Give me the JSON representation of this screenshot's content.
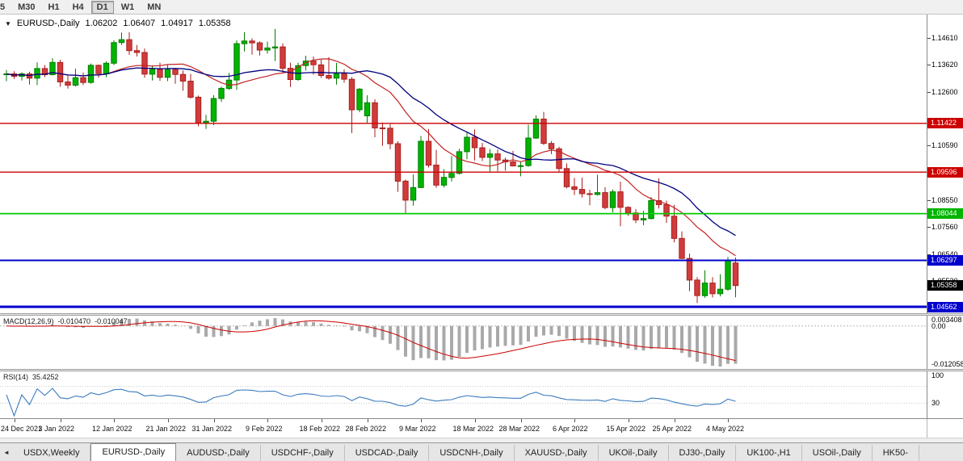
{
  "toolbar": {
    "timeframes": [
      {
        "label": "5",
        "active": false,
        "clipped": true
      },
      {
        "label": "M30",
        "active": false
      },
      {
        "label": "H1",
        "active": false
      },
      {
        "label": "H4",
        "active": false
      },
      {
        "label": "D1",
        "active": true
      },
      {
        "label": "W1",
        "active": false
      },
      {
        "label": "MN",
        "active": false
      }
    ]
  },
  "chart": {
    "title": {
      "collapse_arrow": "▼",
      "symbol_period": "EURUSD-,Daily",
      "open": "1.06202",
      "high": "1.06407",
      "low": "1.04917",
      "close": "1.05358"
    },
    "price_axis": {
      "labels": [
        {
          "text": "1.14610",
          "price": 1.1461
        },
        {
          "text": "1.13620",
          "price": 1.1362
        },
        {
          "text": "1.12600",
          "price": 1.126
        },
        {
          "text": "1.10590",
          "price": 1.1059
        },
        {
          "text": "1.08550",
          "price": 1.0855
        },
        {
          "text": "1.07560",
          "price": 1.0756
        },
        {
          "text": "1.06540",
          "price": 1.0654
        },
        {
          "text": "1.05520",
          "price": 1.0552
        }
      ],
      "badges": [
        {
          "text": "1.11422",
          "price": 1.11422,
          "bg": "#cc0000"
        },
        {
          "text": "1.09596",
          "price": 1.09596,
          "bg": "#cc0000"
        },
        {
          "text": "1.08044",
          "price": 1.08044,
          "bg": "#00b400"
        },
        {
          "text": "1.06297",
          "price": 1.06297,
          "bg": "#0000cc"
        },
        {
          "text": "1.05358",
          "price": 1.05358,
          "bg": "#000000"
        },
        {
          "text": "1.04562",
          "price": 1.04562,
          "bg": "#0000cc"
        }
      ]
    },
    "indicators": {
      "macd": {
        "label": "MACD(12,26,9)",
        "value_main": "-0.010470",
        "value_signal": "-0.010047",
        "axis": [
          {
            "text": "0.003408",
            "pos": "max"
          },
          {
            "text": "0.00",
            "pos": "zero"
          },
          {
            "text": "-0.012058",
            "pos": "min"
          }
        ]
      },
      "rsi": {
        "label": "RSI(14)",
        "value": "35.4252",
        "axis": [
          {
            "text": "100",
            "pos": "top"
          },
          {
            "text": "30",
            "pos": "level30"
          }
        ]
      }
    }
  },
  "chart_data": {
    "type": "candlestick",
    "title": "EURUSD-,Daily",
    "y_range": [
      1.0432,
      1.1549
    ],
    "x_labels": [
      {
        "label": "24 Dec 2021",
        "index": 1
      },
      {
        "label": "3 Jan 2022",
        "index": 7
      },
      {
        "label": "12 Jan 2022",
        "index": 14
      },
      {
        "label": "21 Jan 2022",
        "index": 21
      },
      {
        "label": "31 Jan 2022",
        "index": 27
      },
      {
        "label": "9 Feb 2022",
        "index": 34
      },
      {
        "label": "18 Feb 2022",
        "index": 41
      },
      {
        "label": "28 Feb 2022",
        "index": 47
      },
      {
        "label": "9 Mar 2022",
        "index": 54
      },
      {
        "label": "18 Mar 2022",
        "index": 61
      },
      {
        "label": "28 Mar 2022",
        "index": 67
      },
      {
        "label": "6 Apr 2022",
        "index": 74
      },
      {
        "label": "15 Apr 2022",
        "index": 81
      },
      {
        "label": "25 Apr 2022",
        "index": 87
      },
      {
        "label": "4 May 2022",
        "index": 94
      }
    ],
    "candles": [
      [
        1.1325,
        1.1342,
        1.13,
        1.1327
      ],
      [
        1.1327,
        1.1337,
        1.1308,
        1.1318
      ],
      [
        1.1318,
        1.1333,
        1.1302,
        1.1327
      ],
      [
        1.1327,
        1.1335,
        1.1287,
        1.1311
      ],
      [
        1.1311,
        1.137,
        1.1285,
        1.1347
      ],
      [
        1.1347,
        1.136,
        1.1315,
        1.1324
      ],
      [
        1.1324,
        1.1386,
        1.1321,
        1.137
      ],
      [
        1.137,
        1.138,
        1.1279,
        1.1297
      ],
      [
        1.1297,
        1.1324,
        1.1272,
        1.1285
      ],
      [
        1.1285,
        1.1347,
        1.128,
        1.1313
      ],
      [
        1.1313,
        1.1332,
        1.1285,
        1.1295
      ],
      [
        1.1295,
        1.1366,
        1.129,
        1.1359
      ],
      [
        1.1359,
        1.1362,
        1.1313,
        1.1328
      ],
      [
        1.1328,
        1.1374,
        1.1314,
        1.1367
      ],
      [
        1.1367,
        1.1453,
        1.136,
        1.1444
      ],
      [
        1.1444,
        1.1482,
        1.1435,
        1.1455
      ],
      [
        1.1455,
        1.1483,
        1.1398,
        1.1414
      ],
      [
        1.1414,
        1.1435,
        1.1392,
        1.1407
      ],
      [
        1.1407,
        1.1422,
        1.1313,
        1.1326
      ],
      [
        1.1326,
        1.1359,
        1.1302,
        1.1344
      ],
      [
        1.1344,
        1.1369,
        1.1301,
        1.1314
      ],
      [
        1.1314,
        1.136,
        1.13,
        1.1343
      ],
      [
        1.1343,
        1.1349,
        1.129,
        1.1325
      ],
      [
        1.1325,
        1.134,
        1.1264,
        1.13
      ],
      [
        1.13,
        1.1327,
        1.1234,
        1.124
      ],
      [
        1.124,
        1.1246,
        1.1131,
        1.1144
      ],
      [
        1.1144,
        1.1174,
        1.1121,
        1.115
      ],
      [
        1.115,
        1.1247,
        1.1135,
        1.1235
      ],
      [
        1.1235,
        1.1279,
        1.1222,
        1.1273
      ],
      [
        1.1273,
        1.133,
        1.1267,
        1.1304
      ],
      [
        1.1304,
        1.1452,
        1.1267,
        1.144
      ],
      [
        1.144,
        1.1483,
        1.1411,
        1.145
      ],
      [
        1.145,
        1.146,
        1.1399,
        1.1443
      ],
      [
        1.1443,
        1.1449,
        1.1396,
        1.1416
      ],
      [
        1.1416,
        1.1448,
        1.1403,
        1.1424
      ],
      [
        1.1424,
        1.1495,
        1.1375,
        1.1428
      ],
      [
        1.1428,
        1.1441,
        1.133,
        1.1348
      ],
      [
        1.1348,
        1.1369,
        1.1278,
        1.1306
      ],
      [
        1.1306,
        1.1369,
        1.1301,
        1.1358
      ],
      [
        1.1358,
        1.1395,
        1.134,
        1.1375
      ],
      [
        1.1375,
        1.1392,
        1.1324,
        1.1361
      ],
      [
        1.1361,
        1.138,
        1.1312,
        1.1321
      ],
      [
        1.1321,
        1.139,
        1.1305,
        1.1311
      ],
      [
        1.1311,
        1.1368,
        1.1287,
        1.1327
      ],
      [
        1.1327,
        1.1344,
        1.1294,
        1.1307
      ],
      [
        1.1307,
        1.1315,
        1.1106,
        1.1193
      ],
      [
        1.1193,
        1.1274,
        1.1184,
        1.127
      ],
      [
        1.117,
        1.1247,
        1.1144,
        1.1219
      ],
      [
        1.1219,
        1.1232,
        1.109,
        1.1125
      ],
      [
        1.1125,
        1.1145,
        1.1058,
        1.1124
      ],
      [
        1.1124,
        1.1139,
        1.1045,
        1.1066
      ],
      [
        1.1066,
        1.1075,
        1.0886,
        1.0926
      ],
      [
        1.0926,
        1.0932,
        1.0806,
        1.0855
      ],
      [
        1.0855,
        1.0951,
        1.0834,
        1.0902
      ],
      [
        1.0902,
        1.1095,
        1.09,
        1.1075
      ],
      [
        1.1075,
        1.1121,
        1.0977,
        1.0986
      ],
      [
        1.0986,
        1.1043,
        1.0901,
        1.0911
      ],
      [
        1.0911,
        1.0971,
        1.0902,
        1.094
      ],
      [
        1.094,
        1.102,
        1.0925,
        1.0955
      ],
      [
        1.0955,
        1.1047,
        1.095,
        1.1036
      ],
      [
        1.1036,
        1.1109,
        1.1008,
        1.109
      ],
      [
        1.109,
        1.1119,
        1.1003,
        1.1051
      ],
      [
        1.1051,
        1.1069,
        1.1001,
        1.1015
      ],
      [
        1.1015,
        1.1046,
        1.0962,
        1.1028
      ],
      [
        1.1028,
        1.1044,
        1.0963,
        1.1005
      ],
      [
        1.1005,
        1.1014,
        1.0965,
        1.0998
      ],
      [
        1.0998,
        1.1039,
        1.0981,
        1.0983
      ],
      [
        1.0983,
        1.0999,
        1.0944,
        1.0984
      ],
      [
        1.0984,
        1.1137,
        1.098,
        1.1087
      ],
      [
        1.1087,
        1.1172,
        1.1084,
        1.1158
      ],
      [
        1.1158,
        1.1185,
        1.1061,
        1.1067
      ],
      [
        1.1067,
        1.1076,
        1.1027,
        1.1047
      ],
      [
        1.1047,
        1.1055,
        1.096,
        1.0973
      ],
      [
        1.0973,
        1.0992,
        1.0899,
        1.0905
      ],
      [
        1.0905,
        1.0938,
        1.0874,
        1.0895
      ],
      [
        1.0895,
        1.0939,
        1.0865,
        1.0879
      ],
      [
        1.0879,
        1.0894,
        1.0836,
        1.0876
      ],
      [
        1.0876,
        1.095,
        1.0872,
        1.0883
      ],
      [
        1.0883,
        1.0904,
        1.0821,
        1.0827
      ],
      [
        1.0827,
        1.0895,
        1.0809,
        1.0886
      ],
      [
        1.0886,
        1.0924,
        1.0757,
        1.0828
      ],
      [
        1.0828,
        1.0832,
        1.0796,
        1.0807
      ],
      [
        1.0807,
        1.0821,
        1.0769,
        1.0781
      ],
      [
        1.0781,
        1.0815,
        1.0761,
        1.0786
      ],
      [
        1.0786,
        1.0867,
        1.0783,
        1.0853
      ],
      [
        1.0853,
        1.0937,
        1.0824,
        1.0838
      ],
      [
        1.0838,
        1.0853,
        1.077,
        1.0795
      ],
      [
        1.0795,
        1.0837,
        1.0697,
        1.0712
      ],
      [
        1.0712,
        1.0738,
        1.0635,
        1.0637
      ],
      [
        1.0637,
        1.0655,
        1.0514,
        1.0556
      ],
      [
        1.0556,
        1.0567,
        1.047,
        1.0498
      ],
      [
        1.0498,
        1.0593,
        1.049,
        1.0545
      ],
      [
        1.0545,
        1.0567,
        1.0491,
        1.0505
      ],
      [
        1.0505,
        1.0578,
        1.0495,
        1.0522
      ],
      [
        1.0522,
        1.0642,
        1.0516,
        1.063
      ],
      [
        1.06202,
        1.06407,
        1.04917,
        1.05358
      ]
    ],
    "overlays": [
      {
        "name": "ma-fast",
        "type": "sma",
        "period": 13,
        "color": "#c22222",
        "width": 1.2
      },
      {
        "name": "ma-slow",
        "type": "sma",
        "period": 21,
        "color": "#000080",
        "width": 1.3
      }
    ],
    "hlines": [
      {
        "price": 1.11422,
        "color": "#cc0000",
        "width": 1.4
      },
      {
        "price": 1.09596,
        "color": "#cc0000",
        "width": 1.4
      },
      {
        "price": 1.08044,
        "color": "#00cc00",
        "width": 1.8
      },
      {
        "price": 1.06297,
        "color": "#0000cc",
        "width": 2
      },
      {
        "price": 1.04562,
        "color": "#0000cc",
        "width": 3
      }
    ],
    "colors": {
      "up_fill": "#00b400",
      "up_stroke": "#007d00",
      "down_fill": "#d03c3c",
      "down_stroke": "#aa1e1e"
    },
    "macd": {
      "fast": 12,
      "slow": 26,
      "signal": 9,
      "hist_color": "#a9a9a9",
      "signal_color": "#cc0000"
    },
    "rsi": {
      "period": 14,
      "color": "#3c7cbe",
      "levels": [
        30,
        70
      ],
      "level_color": "#c8c8c8"
    }
  },
  "tabbar": {
    "scroll_left": "◄",
    "tabs": [
      {
        "label": "USDX,Weekly",
        "active": false
      },
      {
        "label": "EURUSD-,Daily",
        "active": true
      },
      {
        "label": "AUDUSD-,Daily",
        "active": false
      },
      {
        "label": "USDCHF-,Daily",
        "active": false
      },
      {
        "label": "USDCAD-,Daily",
        "active": false
      },
      {
        "label": "USDCNH-,Daily",
        "active": false
      },
      {
        "label": "XAUUSD-,Daily",
        "active": false
      },
      {
        "label": "UKOil-,Daily",
        "active": false
      },
      {
        "label": "DJ30-,Daily",
        "active": false
      },
      {
        "label": "UK100-,H1",
        "active": false
      },
      {
        "label": "USOil-,Daily",
        "active": false
      },
      {
        "label": "HK50-",
        "active": false,
        "clipped": true
      }
    ]
  }
}
